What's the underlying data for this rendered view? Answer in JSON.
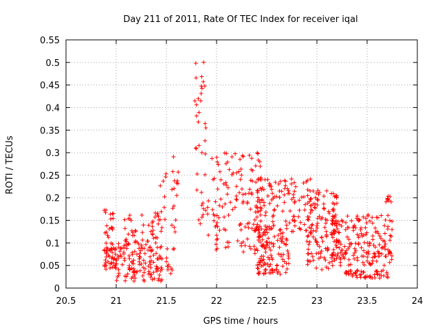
{
  "chart_data": {
    "type": "scatter",
    "title": "Day 211 of 2011, Rate Of TEC Index for receiver iqal",
    "xlabel": "GPS time / hours",
    "ylabel": "ROTI / TECUs",
    "xlim": [
      20.5,
      24
    ],
    "ylim": [
      0,
      0.55
    ],
    "xticks": [
      "20.5",
      "21",
      "21.5",
      "22",
      "22.5",
      "23",
      "23.5",
      "24"
    ],
    "yticks": [
      "0",
      "0.05",
      "0.1",
      "0.15",
      "0.2",
      "0.25",
      "0.3",
      "0.35",
      "0.4",
      "0.45",
      "0.5",
      "0.55"
    ],
    "grid": true,
    "legend": "none",
    "marker": "plus",
    "marker_color": "#ff0000",
    "clusters": [
      {
        "name": "base-21.0",
        "x_range": [
          20.88,
          21.0
        ],
        "y_range": [
          0.04,
          0.1
        ],
        "count": 45
      },
      {
        "name": "mid-21.0",
        "x_range": [
          20.88,
          20.98
        ],
        "y_range": [
          0.1,
          0.175
        ],
        "count": 18
      },
      {
        "name": "base-21.25",
        "x_range": [
          21.0,
          21.47
        ],
        "y_range": [
          0.015,
          0.1
        ],
        "count": 130
      },
      {
        "name": "mid-21.25",
        "x_range": [
          21.08,
          21.46
        ],
        "y_range": [
          0.1,
          0.17
        ],
        "count": 45
      },
      {
        "name": "upper-21.4",
        "x_range": [
          21.4,
          21.5
        ],
        "y_range": [
          0.15,
          0.265
        ],
        "count": 10
      },
      {
        "name": "low-21.55",
        "x_range": [
          21.5,
          21.58
        ],
        "y_range": [
          0.03,
          0.09
        ],
        "count": 12
      },
      {
        "name": "rise-21.6",
        "x_range": [
          21.55,
          21.62
        ],
        "y_range": [
          0.1,
          0.33
        ],
        "count": 16
      },
      {
        "name": "spike-21.85",
        "x_range": [
          21.78,
          21.9
        ],
        "y_range": [
          0.25,
          0.505
        ],
        "count": 26
      },
      {
        "name": "foot-21.85",
        "x_range": [
          21.8,
          21.92
        ],
        "y_range": [
          0.09,
          0.22
        ],
        "count": 14
      },
      {
        "name": "band-22.1",
        "x_range": [
          21.95,
          22.45
        ],
        "y_range": [
          0.08,
          0.3
        ],
        "count": 130
      },
      {
        "name": "base-22.5",
        "x_range": [
          22.38,
          22.72
        ],
        "y_range": [
          0.03,
          0.14
        ],
        "count": 130
      },
      {
        "name": "upper-22.6",
        "x_range": [
          22.38,
          22.95
        ],
        "y_range": [
          0.12,
          0.245
        ],
        "count": 120
      },
      {
        "name": "band-23.0",
        "x_range": [
          22.9,
          23.2
        ],
        "y_range": [
          0.04,
          0.22
        ],
        "count": 130
      },
      {
        "name": "band-23.3",
        "x_range": [
          23.15,
          23.45
        ],
        "y_range": [
          0.05,
          0.16
        ],
        "count": 100
      },
      {
        "name": "band-23.6",
        "x_range": [
          23.45,
          23.75
        ],
        "y_range": [
          0.05,
          0.165
        ],
        "count": 90
      },
      {
        "name": "floor-23.5",
        "x_range": [
          23.28,
          23.73
        ],
        "y_range": [
          0.022,
          0.04
        ],
        "count": 50
      },
      {
        "name": "top-23.7",
        "x_range": [
          23.68,
          23.74
        ],
        "y_range": [
          0.19,
          0.205
        ],
        "count": 8
      }
    ]
  }
}
